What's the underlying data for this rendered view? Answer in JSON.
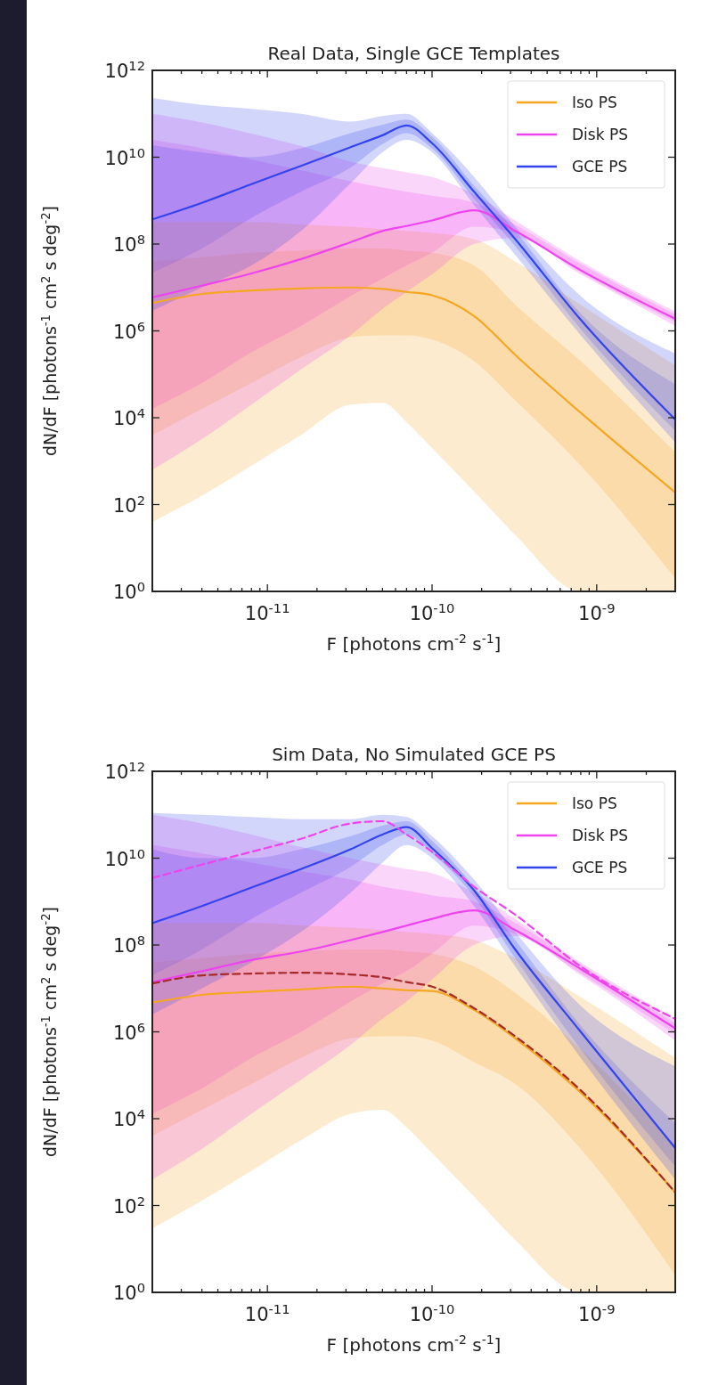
{
  "chart_data": [
    {
      "type": "line",
      "title": "Real Data, Single GCE Templates",
      "xlabel": "F  [photons cm$^{-2}$ s$^{-1}$]",
      "ylabel": "dN/dF [photons$^{-1}$ cm$^{2}$ s deg$^{-2}$]",
      "log": "xy",
      "legend": "top right",
      "xlim": [
        2e-12,
        3e-09
      ],
      "ylim": [
        1,
        1000000000000.0
      ],
      "xticks": [
        {
          "value": 3e-12,
          "label": null
        },
        {
          "value": 4e-12,
          "label": null
        },
        {
          "value": 5e-12,
          "label": null
        },
        {
          "value": 6e-12,
          "label": null
        },
        {
          "value": 7e-12,
          "label": null
        },
        {
          "value": 8e-12,
          "label": null
        },
        {
          "value": 9e-12,
          "label": null
        },
        {
          "value": 1e-11,
          "label": "10$^{-11}$"
        },
        {
          "value": 2e-11,
          "label": null
        },
        {
          "value": 3e-11,
          "label": null
        },
        {
          "value": 4e-11,
          "label": null
        },
        {
          "value": 5e-11,
          "label": null
        },
        {
          "value": 6e-11,
          "label": null
        },
        {
          "value": 7e-11,
          "label": null
        },
        {
          "value": 8e-11,
          "label": null
        },
        {
          "value": 9e-11,
          "label": null
        },
        {
          "value": 1e-10,
          "label": "10$^{-10}$"
        },
        {
          "value": 2e-10,
          "label": null
        },
        {
          "value": 3e-10,
          "label": null
        },
        {
          "value": 4e-10,
          "label": null
        },
        {
          "value": 5e-10,
          "label": null
        },
        {
          "value": 6e-10,
          "label": null
        },
        {
          "value": 7e-10,
          "label": null
        },
        {
          "value": 8e-10,
          "label": null
        },
        {
          "value": 9e-10,
          "label": null
        },
        {
          "value": 1e-09,
          "label": "10$^{-9}$"
        },
        {
          "value": 2e-09,
          "label": null
        }
      ],
      "yticks": [
        {
          "value": 1,
          "label": "10$^{0}$"
        },
        {
          "value": 100,
          "label": "10$^{2}$"
        },
        {
          "value": 10000,
          "label": "10$^{4}$"
        },
        {
          "value": 1000000,
          "label": "10$^{6}$"
        },
        {
          "value": 100000000,
          "label": "10$^{8}$"
        },
        {
          "value": 10000000000,
          "label": "10$^{10}$"
        },
        {
          "value": 1000000000000,
          "label": "10$^{12}$"
        }
      ],
      "x": [
        2e-12,
        4e-12,
        8e-12,
        1.6e-11,
        3.2e-11,
        5e-11,
        7e-11,
        1e-10,
        1.8e-10,
        3.2e-10,
        8e-10,
        3e-09
      ],
      "series": [
        {
          "name": "Iso PS",
          "color": "#f5a623",
          "values": [
            4400000.0,
            7100000.0,
            8500000.0,
            9500000.0,
            10000000.0,
            9300000.0,
            7900000.0,
            6600000.0,
            2200000.0,
            280000.0,
            13000.0,
            190
          ],
          "lower": [
            4000.0,
            16000.0,
            63000.0,
            250000.0,
            710000.0,
            790000.0,
            790000.0,
            630000.0,
            200000.0,
            25000.0,
            790,
            2
          ],
          "upper": [
            40000000.0,
            50000000.0,
            63000000.0,
            71000000.0,
            79000000.0,
            79000000.0,
            71000000.0,
            63000000.0,
            32000000.0,
            4000000.0,
            200000.0,
            1600.0
          ]
        },
        {
          "name": "Disk PS",
          "color": "#ee44ee",
          "values": [
            5900000.0,
            11000000.0,
            21000000.0,
            45000000.0,
            110000000.0,
            200000000.0,
            260000000.0,
            350000000.0,
            600000000.0,
            200000000.0,
            25000000.0,
            1900000.0
          ],
          "lower": [
            16000.0,
            63000.0,
            320000.0,
            1300000.0,
            6300000.0,
            16000000.0,
            32000000.0,
            63000000.0,
            250000000.0,
            180000000.0,
            22000000.0,
            1600000.0
          ],
          "upper": [
            25000000000.0,
            16000000000.0,
            8900000000.0,
            5000000000.0,
            2800000000.0,
            2000000000.0,
            1600000000.0,
            1300000000.0,
            890000000.0,
            280000000.0,
            35000000.0,
            2400000.0
          ]
        },
        {
          "name": "GCE PS",
          "color": "#3344ee",
          "values": [
            370000000.0,
            890000000.0,
            2400000000.0,
            6300000000.0,
            17000000000.0,
            32000000000.0,
            54000000000.0,
            21000000000.0,
            1600000000.0,
            130000000.0,
            1800000.0,
            9100.0
          ],
          "lower": [
            22000000.0,
            79000000.0,
            400000000.0,
            1600000000.0,
            5800000000.0,
            20000000000.0,
            36000000000.0,
            16000000000.0,
            1100000000.0,
            89000000.0,
            1100000.0,
            5000.0
          ],
          "upper": [
            19000000000.0,
            13000000000.0,
            10000000000.0,
            16000000000.0,
            36000000000.0,
            56000000000.0,
            74000000000.0,
            30000000000.0,
            2200000000.0,
            200000000.0,
            2500000.0,
            59000.0
          ]
        },
        {
          "color": "#f5a623",
          "values": [
            null,
            null,
            null,
            null,
            null,
            null,
            null,
            null,
            null,
            null,
            null,
            null
          ],
          "lower": [
            40,
            160,
            790,
            4000.0,
            20000.0,
            22000.0,
            7900.0,
            2000.0,
            200,
            20,
            1,
            1
          ],
          "upper": [
            320000000.0,
            320000000.0,
            320000000.0,
            280000000.0,
            250000000.0,
            220000000.0,
            200000000.0,
            180000000.0,
            130000000.0,
            40000000.0,
            4000000.0,
            160000.0
          ]
        },
        {
          "color": "#ee44ee",
          "values": [
            null,
            null,
            null,
            null,
            null,
            null,
            null,
            null,
            null,
            null,
            null,
            null
          ],
          "lower": [
            630,
            3200.0,
            20000.0,
            130000.0,
            790000.0,
            3200000.0,
            7900000.0,
            20000000.0,
            100000000.0,
            140000000.0,
            20000000.0,
            1300000.0
          ],
          "upper": [
            100000000000.0,
            63000000000.0,
            35000000000.0,
            18000000000.0,
            7900000000.0,
            5600000000.0,
            4500000000.0,
            3500000000.0,
            1400000000.0,
            350000000.0,
            40000000.0,
            2800000.0
          ]
        },
        {
          "color": "#3344ee",
          "values": [
            null,
            null,
            null,
            null,
            null,
            null,
            null,
            null,
            null,
            null,
            null,
            null
          ],
          "lower": [
            2900000.0,
            10000000.0,
            32000000.0,
            200000000.0,
            2500000000.0,
            13000000000.0,
            25000000000.0,
            13000000000.0,
            790000000.0,
            56000000.0,
            790000.0,
            2700.0
          ],
          "upper": [
            230000000000.0,
            160000000000.0,
            130000000000.0,
            100000000000.0,
            66000000000.0,
            89000000000.0,
            100000000000.0,
            36000000000.0,
            3500000000.0,
            250000000.0,
            6300000.0,
            300000.0
          ]
        }
      ]
    },
    {
      "type": "line",
      "title": "Sim Data, No Simulated GCE PS",
      "xlabel": "F  [photons cm$^{-2}$ s$^{-1}$]",
      "ylabel": "dN/dF [photons$^{-1}$ cm$^{2}$ s deg$^{-2}$]",
      "log": "xy",
      "legend": "top right",
      "xlim": [
        2e-12,
        3e-09
      ],
      "ylim": [
        1,
        1000000000000.0
      ],
      "xticks": [
        {
          "value": 3e-12,
          "label": null
        },
        {
          "value": 4e-12,
          "label": null
        },
        {
          "value": 5e-12,
          "label": null
        },
        {
          "value": 6e-12,
          "label": null
        },
        {
          "value": 7e-12,
          "label": null
        },
        {
          "value": 8e-12,
          "label": null
        },
        {
          "value": 9e-12,
          "label": null
        },
        {
          "value": 1e-11,
          "label": "10$^{-11}$"
        },
        {
          "value": 2e-11,
          "label": null
        },
        {
          "value": 3e-11,
          "label": null
        },
        {
          "value": 4e-11,
          "label": null
        },
        {
          "value": 5e-11,
          "label": null
        },
        {
          "value": 6e-11,
          "label": null
        },
        {
          "value": 7e-11,
          "label": null
        },
        {
          "value": 8e-11,
          "label": null
        },
        {
          "value": 9e-11,
          "label": null
        },
        {
          "value": 1e-10,
          "label": "10$^{-10}$"
        },
        {
          "value": 2e-10,
          "label": null
        },
        {
          "value": 3e-10,
          "label": null
        },
        {
          "value": 4e-10,
          "label": null
        },
        {
          "value": 5e-10,
          "label": null
        },
        {
          "value": 6e-10,
          "label": null
        },
        {
          "value": 7e-10,
          "label": null
        },
        {
          "value": 8e-10,
          "label": null
        },
        {
          "value": 9e-10,
          "label": null
        },
        {
          "value": 1e-09,
          "label": "10$^{-9}$"
        },
        {
          "value": 2e-09,
          "label": null
        }
      ],
      "yticks": [
        {
          "value": 1,
          "label": "10$^{0}$"
        },
        {
          "value": 100,
          "label": "10$^{2}$"
        },
        {
          "value": 10000,
          "label": "10$^{4}$"
        },
        {
          "value": 1000000,
          "label": "10$^{6}$"
        },
        {
          "value": 100000000,
          "label": "10$^{8}$"
        },
        {
          "value": 10000000000,
          "label": "10$^{10}$"
        },
        {
          "value": 1000000000000,
          "label": "10$^{12}$"
        }
      ],
      "x": [
        2e-12,
        4e-12,
        8e-12,
        1.6e-11,
        3.2e-11,
        5e-11,
        7e-11,
        1e-10,
        1.8e-10,
        3.2e-10,
        8e-10,
        3e-09
      ],
      "series": [
        {
          "name": "Iso PS",
          "color": "#f5a623",
          "values": [
            4700000.0,
            7100000.0,
            8300000.0,
            9500000.0,
            11000000.0,
            10000000.0,
            9100000.0,
            8700000.0,
            3200000.0,
            710000.0,
            40000.0,
            200
          ],
          "lower": [
            4000.0,
            16000.0,
            63000.0,
            250000.0,
            710000.0,
            790000.0,
            790000.0,
            630000.0,
            200000.0,
            63000.0,
            2000.0,
            2.5
          ],
          "upper": [
            40000000.0,
            50000000.0,
            63000000.0,
            71000000.0,
            79000000.0,
            79000000.0,
            71000000.0,
            63000000.0,
            32000000.0,
            7900000.0,
            400000.0,
            2500.0
          ]
        },
        {
          "name": "Disk PS",
          "color": "#ee44ee",
          "values": [
            14000000.0,
            25000000.0,
            45000000.0,
            71000000.0,
            130000000.0,
            200000000.0,
            280000000.0,
            400000000.0,
            630000000.0,
            220000000.0,
            28000000.0,
            1200000.0
          ],
          "lower": [
            13000.0,
            50000.0,
            250000.0,
            1000000.0,
            5000000.0,
            13000000.0,
            25000000.0,
            63000000.0,
            280000000.0,
            180000000.0,
            22000000.0,
            890000.0
          ],
          "upper": [
            20000000000.0,
            13000000000.0,
            7900000000.0,
            5000000000.0,
            3200000000.0,
            2200000000.0,
            1800000000.0,
            1400000000.0,
            1000000000.0,
            320000000.0,
            35000000.0,
            1600000.0
          ]
        },
        {
          "name": "GCE PS",
          "color": "#3344ee",
          "values": [
            320000000.0,
            790000000.0,
            2100000000.0,
            5600000000.0,
            16000000000.0,
            35000000000.0,
            52000000000.0,
            17000000000.0,
            1800000000.0,
            79000000.0,
            1000000.0,
            2100.0
          ],
          "lower": [
            20000000.0,
            79000000.0,
            400000000.0,
            1600000000.0,
            6300000000.0,
            20000000000.0,
            35000000000.0,
            13000000000.0,
            1300000000.0,
            50000000.0,
            400000.0,
            790
          ],
          "upper": [
            16000000000.0,
            10000000000.0,
            10000000000.0,
            16000000000.0,
            32000000000.0,
            56000000000.0,
            71000000000.0,
            25000000000.0,
            2200000000.0,
            130000000.0,
            1400000.0,
            7900.0
          ]
        },
        {
          "color": "#f5a623",
          "values": [
            null,
            null,
            null,
            null,
            null,
            null,
            null,
            null,
            null,
            null,
            null,
            null
          ],
          "lower": [
            30,
            130,
            630,
            3200.0,
            13000.0,
            16000.0,
            6300.0,
            1600.0,
            160,
            16,
            1,
            1
          ],
          "upper": [
            320000000.0,
            320000000.0,
            320000000.0,
            280000000.0,
            250000000.0,
            220000000.0,
            200000000.0,
            180000000.0,
            130000000.0,
            50000000.0,
            6300000.0,
            250000.0
          ]
        },
        {
          "color": "#ee44ee",
          "values": [
            null,
            null,
            null,
            null,
            null,
            null,
            null,
            null,
            null,
            null,
            null,
            null
          ],
          "lower": [
            400,
            2000.0,
            13000.0,
            79000.0,
            500000.0,
            2000000.0,
            5000000.0,
            16000000.0,
            100000000.0,
            160000000.0,
            20000000.0,
            630000.0
          ],
          "upper": [
            100000000000.0,
            63000000000.0,
            35000000000.0,
            18000000000.0,
            10000000000.0,
            7100000000.0,
            5600000000.0,
            4500000000.0,
            1600000000.0,
            400000000.0,
            40000000.0,
            2000000.0
          ]
        },
        {
          "color": "#3344ee",
          "values": [
            null,
            null,
            null,
            null,
            null,
            null,
            null,
            null,
            null,
            null,
            null,
            null
          ],
          "lower": [
            2500000.0,
            10000000.0,
            40000000.0,
            200000000.0,
            1600000000.0,
            7900000000.0,
            20000000000.0,
            10000000000.0,
            790000000.0,
            32000000.0,
            250000.0,
            400
          ],
          "upper": [
            110000000000.0,
            100000000000.0,
            89000000000.0,
            79000000000.0,
            79000000000.0,
            100000000000.0,
            89000000000.0,
            32000000000.0,
            3200000000.0,
            200000000.0,
            4000000.0,
            160000.0
          ]
        },
        {
          "color": "#ee44ee",
          "line_style": "dashed",
          "values": [
            3500000000.0,
            7100000000.0,
            14000000000.0,
            28000000000.0,
            63000000000.0,
            71000000000.0,
            35000000000.0,
            14000000000.0,
            2200000000.0,
            500000000.0,
            32000000.0,
            2000000.0
          ]
        },
        {
          "color": "#a52a2a",
          "line_style": "dashed",
          "values": [
            13000000.0,
            20000000.0,
            22000000.0,
            23000000.0,
            21000000.0,
            18000000.0,
            14000000.0,
            11000000.0,
            3500000.0,
            790000.0,
            45000.0,
            200
          ]
        }
      ]
    }
  ]
}
